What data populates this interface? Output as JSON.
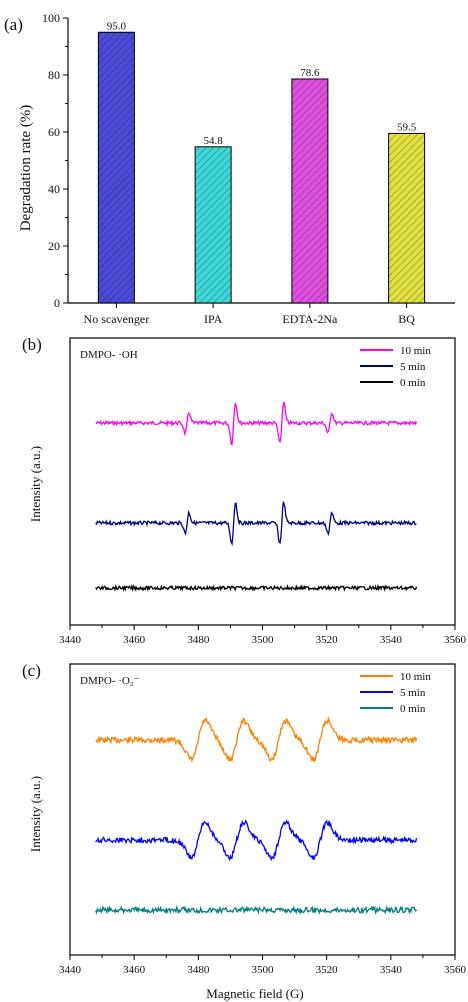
{
  "chart_data": [
    {
      "panel_label": "(a)",
      "type": "bar",
      "ylabel": "Degradation rate (%)",
      "ylim": [
        0,
        100
      ],
      "yticks": [
        0,
        20,
        40,
        60,
        80,
        100
      ],
      "categories": [
        "No scavenger",
        "IPA",
        "EDTA-2Na",
        "BQ"
      ],
      "values": [
        95.0,
        54.8,
        78.6,
        59.5
      ],
      "value_labels": [
        "95.0",
        "54.8",
        "78.6",
        "59.5"
      ],
      "bar_colors": [
        "#4b4bd8",
        "#3fd8d8",
        "#e050e0",
        "#e0e040"
      ],
      "grid": false
    },
    {
      "panel_label": "(b)",
      "type": "line",
      "annotation": "DMPO- ·OH",
      "ylabel": "Intensity (a.u.)",
      "xlim": [
        3440,
        3560
      ],
      "xticks": [
        3440,
        3460,
        3480,
        3500,
        3520,
        3540,
        3560
      ],
      "legend_position": "top-right",
      "series": [
        {
          "name": "10 min",
          "color": "#ff00ff",
          "offset": 0.0,
          "amp": 1.0
        },
        {
          "name": "5 min",
          "color": "#000080",
          "offset": 1.0,
          "amp": 1.0
        },
        {
          "name": "0 min",
          "color": "#000000",
          "offset": 1.65,
          "amp": 0.0
        }
      ],
      "x_range": [
        3448,
        3548
      ],
      "peaks": [
        3476.5,
        3491,
        3506,
        3521
      ],
      "peak_weights": [
        0.5,
        1.0,
        1.0,
        0.5
      ],
      "grid": false
    },
    {
      "panel_label": "(c)",
      "type": "line",
      "annotation": "DMPO- ·O₂⁻",
      "ylabel": "Intensity (a.u.)",
      "xlabel": "Magnetic field (G)",
      "xlim": [
        3440,
        3560
      ],
      "xticks": [
        3440,
        3460,
        3480,
        3500,
        3520,
        3540,
        3560
      ],
      "legend_position": "top-right",
      "series": [
        {
          "name": "10 min",
          "color": "#ff8000",
          "offset": 0.0,
          "amp": 1.0
        },
        {
          "name": "5 min",
          "color": "#0000ff",
          "offset": 1.0,
          "amp": 0.9
        },
        {
          "name": "0 min",
          "color": "#008080",
          "offset": 1.7,
          "amp": 0.0
        }
      ],
      "x_range": [
        3448,
        3548
      ],
      "peaks": [
        3480,
        3492,
        3505,
        3518
      ],
      "grid": false
    }
  ]
}
